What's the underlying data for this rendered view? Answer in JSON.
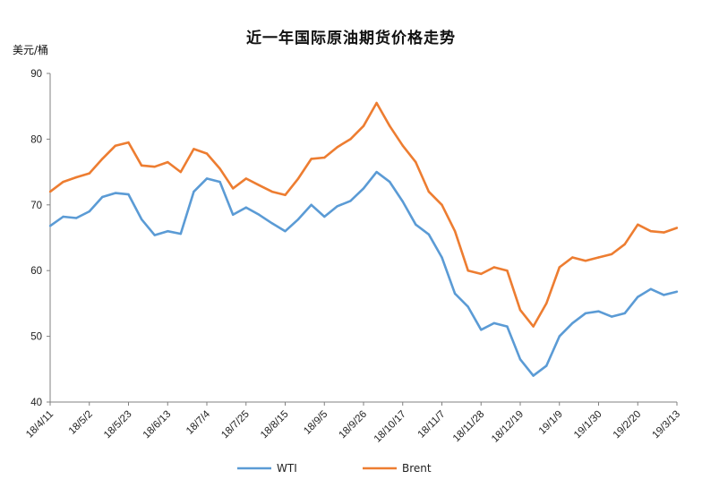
{
  "chart_data": {
    "type": "line",
    "title": "近一年国际原油期货价格走势",
    "ylabel": "美元/桶",
    "xlabel": "",
    "ylim": [
      40,
      90
    ],
    "y_ticks": [
      40,
      50,
      60,
      70,
      80,
      90
    ],
    "x_tick_labels": [
      "18/4/11",
      "18/5/2",
      "18/5/23",
      "18/6/13",
      "18/7/4",
      "18/7/25",
      "18/8/15",
      "18/9/5",
      "18/9/26",
      "18/10/17",
      "18/11/7",
      "18/11/28",
      "18/12/19",
      "19/1/9",
      "19/1/30",
      "19/2/20",
      "19/3/13"
    ],
    "x_range": [
      "18/4/11",
      "19/3/13"
    ],
    "grid": false,
    "legend": "bottom",
    "x": [
      "18/4/11",
      "18/4/18",
      "18/4/25",
      "18/5/2",
      "18/5/9",
      "18/5/16",
      "18/5/23",
      "18/5/30",
      "18/6/6",
      "18/6/13",
      "18/6/20",
      "18/6/27",
      "18/7/4",
      "18/7/11",
      "18/7/18",
      "18/7/25",
      "18/8/1",
      "18/8/8",
      "18/8/15",
      "18/8/22",
      "18/8/29",
      "18/9/5",
      "18/9/12",
      "18/9/19",
      "18/9/26",
      "18/10/3",
      "18/10/10",
      "18/10/17",
      "18/10/24",
      "18/10/31",
      "18/11/7",
      "18/11/14",
      "18/11/21",
      "18/11/28",
      "18/12/5",
      "18/12/12",
      "18/12/19",
      "18/12/26",
      "19/1/2",
      "19/1/9",
      "19/1/16",
      "19/1/23",
      "19/1/30",
      "19/2/6",
      "19/2/13",
      "19/2/20",
      "19/2/27",
      "19/3/6",
      "19/3/13"
    ],
    "series": [
      {
        "name": "WTI",
        "color": "#5b9bd5",
        "values": [
          66.8,
          68.2,
          68.0,
          69.0,
          71.2,
          71.8,
          71.6,
          67.8,
          65.4,
          66.0,
          65.6,
          72.0,
          74.0,
          73.5,
          68.5,
          69.6,
          68.5,
          67.2,
          66.0,
          67.8,
          70.0,
          68.2,
          69.8,
          70.6,
          72.5,
          75.0,
          73.5,
          70.5,
          67.0,
          65.5,
          62.0,
          56.5,
          54.5,
          51.0,
          52.0,
          51.5,
          46.5,
          44.0,
          45.5,
          50.0,
          52.0,
          53.5,
          53.8,
          53.0,
          53.5,
          56.0,
          57.2,
          56.3,
          56.8
        ]
      },
      {
        "name": "Brent",
        "color": "#ed7d31",
        "values": [
          72.0,
          73.5,
          74.2,
          74.8,
          77.0,
          79.0,
          79.5,
          76.0,
          75.8,
          76.5,
          75.0,
          78.5,
          77.8,
          75.5,
          72.5,
          74.0,
          73.0,
          72.0,
          71.5,
          74.0,
          77.0,
          77.2,
          78.8,
          80.0,
          82.0,
          85.5,
          82.0,
          79.0,
          76.5,
          72.0,
          70.0,
          66.0,
          60.0,
          59.5,
          60.5,
          60.0,
          54.0,
          51.5,
          55.0,
          60.5,
          62.0,
          61.5,
          62.0,
          62.5,
          64.0,
          67.0,
          66.0,
          65.8,
          66.5
        ]
      }
    ]
  }
}
